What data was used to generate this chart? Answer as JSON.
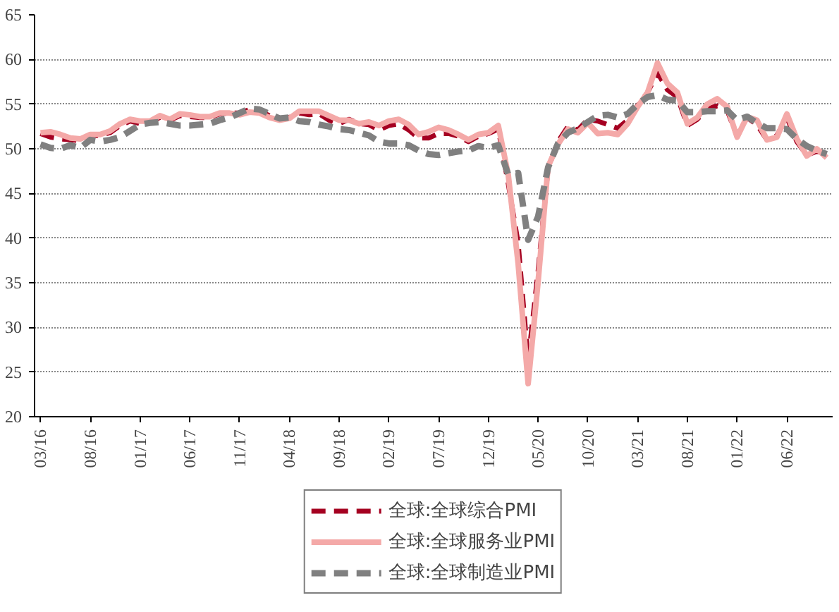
{
  "chart_data": {
    "type": "line",
    "categories": [
      "03/16",
      null,
      null,
      null,
      null,
      "08/16",
      null,
      null,
      null,
      null,
      "01/17",
      null,
      null,
      null,
      null,
      "06/17",
      null,
      null,
      null,
      null,
      "11/17",
      null,
      null,
      null,
      null,
      "04/18",
      null,
      null,
      null,
      null,
      "09/18",
      null,
      null,
      null,
      null,
      "02/19",
      null,
      null,
      null,
      null,
      "07/19",
      null,
      null,
      null,
      null,
      "12/19",
      null,
      null,
      null,
      null,
      "05/20",
      null,
      null,
      null,
      null,
      "10/20",
      null,
      null,
      null,
      null,
      "03/21",
      null,
      null,
      null,
      null,
      "08/21",
      null,
      null,
      null,
      null,
      "01/22",
      null,
      null,
      null,
      null,
      "06/22",
      null,
      null,
      null,
      null
    ],
    "ylim": [
      20,
      65
    ],
    "yticks": [
      20,
      25,
      30,
      35,
      40,
      45,
      50,
      55,
      60,
      65
    ],
    "grid": "y",
    "legend": "bottom",
    "marker": "none",
    "series": [
      {
        "name": "全球:全球综合PMI",
        "color": "#a50021",
        "line_style": "dashed",
        "values": [
          51.7,
          51.3,
          51.1,
          51.0,
          50.9,
          51.4,
          51.5,
          51.8,
          52.6,
          53.1,
          52.8,
          53.0,
          53.5,
          53.2,
          53.7,
          53.6,
          53.5,
          53.5,
          53.9,
          54.0,
          54.0,
          54.4,
          54.3,
          53.7,
          53.3,
          53.5,
          54.0,
          53.8,
          53.9,
          53.2,
          52.8,
          53.3,
          52.8,
          52.7,
          52.1,
          52.6,
          52.8,
          52.1,
          51.2,
          51.2,
          51.7,
          51.7,
          51.4,
          50.8,
          51.4,
          51.7,
          52.2,
          46.1,
          39.4,
          26.2,
          36.3,
          47.8,
          50.8,
          52.5,
          52.1,
          53.3,
          53.1,
          52.7,
          52.3,
          53.2,
          54.8,
          56.3,
          58.5,
          56.6,
          55.8,
          52.6,
          53.3,
          54.5,
          54.8,
          54.3,
          51.4,
          53.5,
          52.7,
          51.0,
          51.5,
          53.5,
          50.8,
          49.3,
          49.7,
          49.5
        ]
      },
      {
        "name": "全球:全球服务业PMI",
        "color": "#f4a9a8",
        "line_style": "solid",
        "values": [
          51.8,
          51.9,
          51.6,
          51.2,
          51.1,
          51.6,
          51.6,
          52.0,
          52.8,
          53.3,
          53.1,
          53.1,
          53.7,
          53.3,
          53.9,
          53.8,
          53.6,
          53.6,
          54.0,
          54.0,
          53.8,
          54.1,
          54.0,
          53.5,
          53.2,
          53.4,
          54.2,
          54.2,
          54.2,
          53.7,
          53.2,
          53.2,
          52.8,
          53.0,
          52.6,
          53.1,
          53.3,
          52.7,
          51.6,
          51.9,
          52.4,
          52.1,
          51.6,
          51.0,
          51.6,
          51.8,
          52.6,
          47.1,
          37.1,
          23.7,
          35.1,
          48.0,
          50.5,
          52.2,
          51.8,
          52.9,
          51.7,
          51.8,
          51.6,
          52.8,
          54.7,
          56.3,
          59.6,
          57.3,
          56.3,
          52.8,
          53.5,
          55.0,
          55.6,
          54.7,
          51.3,
          53.6,
          53.2,
          51.0,
          51.3,
          53.9,
          51.1,
          49.2,
          50.0,
          49.0
        ]
      },
      {
        "name": "全球:全球制造业PMI",
        "color": "#808080",
        "line_style": "dashed",
        "values": [
          50.5,
          50.1,
          50.0,
          50.4,
          50.1,
          51.0,
          50.8,
          51.0,
          51.3,
          52.0,
          52.7,
          52.9,
          53.0,
          52.8,
          52.6,
          52.6,
          52.7,
          52.8,
          53.2,
          53.5,
          54.0,
          54.5,
          54.4,
          53.9,
          53.4,
          53.5,
          53.1,
          53.0,
          52.7,
          52.5,
          52.2,
          52.1,
          51.8,
          51.5,
          50.8,
          50.6,
          50.6,
          50.4,
          49.8,
          49.4,
          49.3,
          49.5,
          49.7,
          49.8,
          50.3,
          50.1,
          50.4,
          47.1,
          47.3,
          39.8,
          42.4,
          47.9,
          50.6,
          51.8,
          52.3,
          53.0,
          53.7,
          53.8,
          53.5,
          53.9,
          55.0,
          55.8,
          56.0,
          55.5,
          55.4,
          54.1,
          54.1,
          54.2,
          54.2,
          54.3,
          53.2,
          53.6,
          52.9,
          52.3,
          52.3,
          52.2,
          51.1,
          50.3,
          49.8,
          49.4
        ]
      }
    ]
  }
}
